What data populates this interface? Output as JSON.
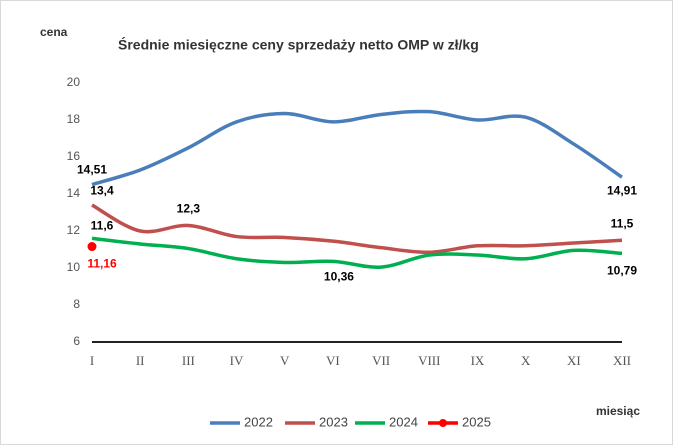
{
  "chart_data": {
    "type": "line",
    "title": "Średnie miesięczne ceny sprzedaży netto OMP w zł/kg",
    "y_label": "cena",
    "x_label": "miesiąc",
    "categories": [
      "I",
      "II",
      "III",
      "IV",
      "V",
      "VI",
      "VII",
      "VIII",
      "IX",
      "X",
      "XI",
      "XII"
    ],
    "ylim": [
      6,
      20
    ],
    "yticks": [
      6,
      8,
      10,
      12,
      14,
      16,
      18,
      20
    ],
    "grid": false,
    "legend": "bottom",
    "series": [
      {
        "name": "2022",
        "color": "#4a7ebb",
        "values": [
          14.51,
          15.3,
          16.5,
          17.9,
          18.35,
          17.9,
          18.3,
          18.45,
          18.0,
          18.15,
          16.7,
          14.91
        ],
        "value_labels": [
          "14,51",
          null,
          null,
          null,
          null,
          null,
          null,
          null,
          null,
          null,
          null,
          "14,91"
        ]
      },
      {
        "name": "2023",
        "color": "#c0504d",
        "values": [
          13.4,
          12.0,
          12.3,
          11.7,
          11.65,
          11.45,
          11.1,
          10.85,
          11.2,
          11.2,
          11.35,
          11.5
        ],
        "value_labels": [
          "13,4",
          null,
          "12,3",
          null,
          null,
          null,
          null,
          null,
          null,
          null,
          null,
          "11,5"
        ]
      },
      {
        "name": "2024",
        "color": "#00b050",
        "values": [
          11.6,
          11.3,
          11.05,
          10.5,
          10.3,
          10.36,
          10.05,
          10.7,
          10.7,
          10.5,
          10.95,
          10.79
        ],
        "value_labels": [
          "11,6",
          null,
          null,
          null,
          null,
          "10,36",
          null,
          null,
          null,
          null,
          null,
          "10,79"
        ]
      },
      {
        "name": "2025",
        "color": "#ff0000",
        "values": [
          11.16,
          null,
          null,
          null,
          null,
          null,
          null,
          null,
          null,
          null,
          null,
          null
        ],
        "value_labels": [
          "11,16",
          null,
          null,
          null,
          null,
          null,
          null,
          null,
          null,
          null,
          null,
          null
        ]
      }
    ]
  }
}
